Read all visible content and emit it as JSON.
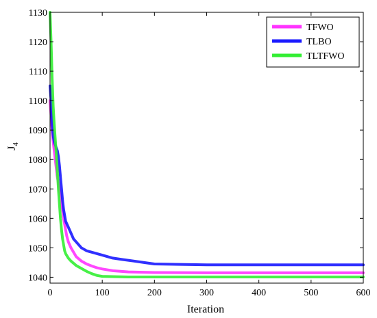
{
  "chart_data": {
    "type": "line",
    "title": "",
    "xlabel": "Iteration",
    "ylabel": "J",
    "ylabel_subscript": "4",
    "xlim": [
      0,
      600
    ],
    "ylim": [
      1038,
      1130
    ],
    "x_ticks": [
      0,
      100,
      200,
      300,
      400,
      500,
      600
    ],
    "y_ticks": [
      1040,
      1050,
      1060,
      1070,
      1080,
      1090,
      1100,
      1110,
      1120,
      1130
    ],
    "grid": false,
    "legend_position": "top-right",
    "series": [
      {
        "name": "TFWO",
        "color": "#ff33ff",
        "points": [
          [
            0,
            1100
          ],
          [
            2,
            1095
          ],
          [
            4,
            1090
          ],
          [
            6,
            1086
          ],
          [
            8,
            1083
          ],
          [
            10,
            1080
          ],
          [
            12,
            1077
          ],
          [
            14,
            1074
          ],
          [
            16,
            1072
          ],
          [
            18,
            1070
          ],
          [
            20,
            1068
          ],
          [
            22,
            1065
          ],
          [
            24,
            1063
          ],
          [
            26,
            1060
          ],
          [
            28,
            1058
          ],
          [
            30,
            1056
          ],
          [
            32,
            1054
          ],
          [
            35,
            1052
          ],
          [
            40,
            1050
          ],
          [
            45,
            1048.5
          ],
          [
            50,
            1047
          ],
          [
            60,
            1045.5
          ],
          [
            70,
            1044.5
          ],
          [
            80,
            1043.8
          ],
          [
            90,
            1043.2
          ],
          [
            100,
            1042.8
          ],
          [
            120,
            1042.2
          ],
          [
            150,
            1041.8
          ],
          [
            200,
            1041.6
          ],
          [
            300,
            1041.5
          ],
          [
            400,
            1041.5
          ],
          [
            500,
            1041.5
          ],
          [
            600,
            1041.5
          ]
        ]
      },
      {
        "name": "TLBO",
        "color": "#1a1aff",
        "points": [
          [
            0,
            1105
          ],
          [
            2,
            1100
          ],
          [
            4,
            1092
          ],
          [
            6,
            1088
          ],
          [
            8,
            1086
          ],
          [
            10,
            1085
          ],
          [
            12,
            1084
          ],
          [
            14,
            1083
          ],
          [
            16,
            1081
          ],
          [
            18,
            1078
          ],
          [
            20,
            1074
          ],
          [
            22,
            1070
          ],
          [
            24,
            1066
          ],
          [
            26,
            1063
          ],
          [
            28,
            1061
          ],
          [
            30,
            1059
          ],
          [
            35,
            1057
          ],
          [
            40,
            1055
          ],
          [
            45,
            1053
          ],
          [
            50,
            1052
          ],
          [
            60,
            1050
          ],
          [
            70,
            1049
          ],
          [
            80,
            1048.5
          ],
          [
            100,
            1047.5
          ],
          [
            120,
            1046.5
          ],
          [
            140,
            1046
          ],
          [
            160,
            1045.5
          ],
          [
            180,
            1045
          ],
          [
            200,
            1044.5
          ],
          [
            300,
            1044.2
          ],
          [
            400,
            1044.2
          ],
          [
            500,
            1044.2
          ],
          [
            600,
            1044.2
          ]
        ]
      },
      {
        "name": "TLTFWO",
        "color": "#33ee33",
        "points": [
          [
            0,
            1130
          ],
          [
            2,
            1120
          ],
          [
            4,
            1108
          ],
          [
            6,
            1098
          ],
          [
            8,
            1092
          ],
          [
            10,
            1087
          ],
          [
            12,
            1082
          ],
          [
            14,
            1076
          ],
          [
            16,
            1070
          ],
          [
            18,
            1065
          ],
          [
            20,
            1060
          ],
          [
            22,
            1056
          ],
          [
            24,
            1053
          ],
          [
            26,
            1051
          ],
          [
            28,
            1049
          ],
          [
            30,
            1048
          ],
          [
            35,
            1046.5
          ],
          [
            40,
            1045.5
          ],
          [
            50,
            1044
          ],
          [
            60,
            1043
          ],
          [
            70,
            1042
          ],
          [
            80,
            1041.2
          ],
          [
            90,
            1040.6
          ],
          [
            100,
            1040.3
          ],
          [
            150,
            1040.1
          ],
          [
            200,
            1040.1
          ],
          [
            300,
            1040.1
          ],
          [
            400,
            1040.1
          ],
          [
            500,
            1040.1
          ],
          [
            600,
            1040.1
          ]
        ]
      }
    ]
  }
}
